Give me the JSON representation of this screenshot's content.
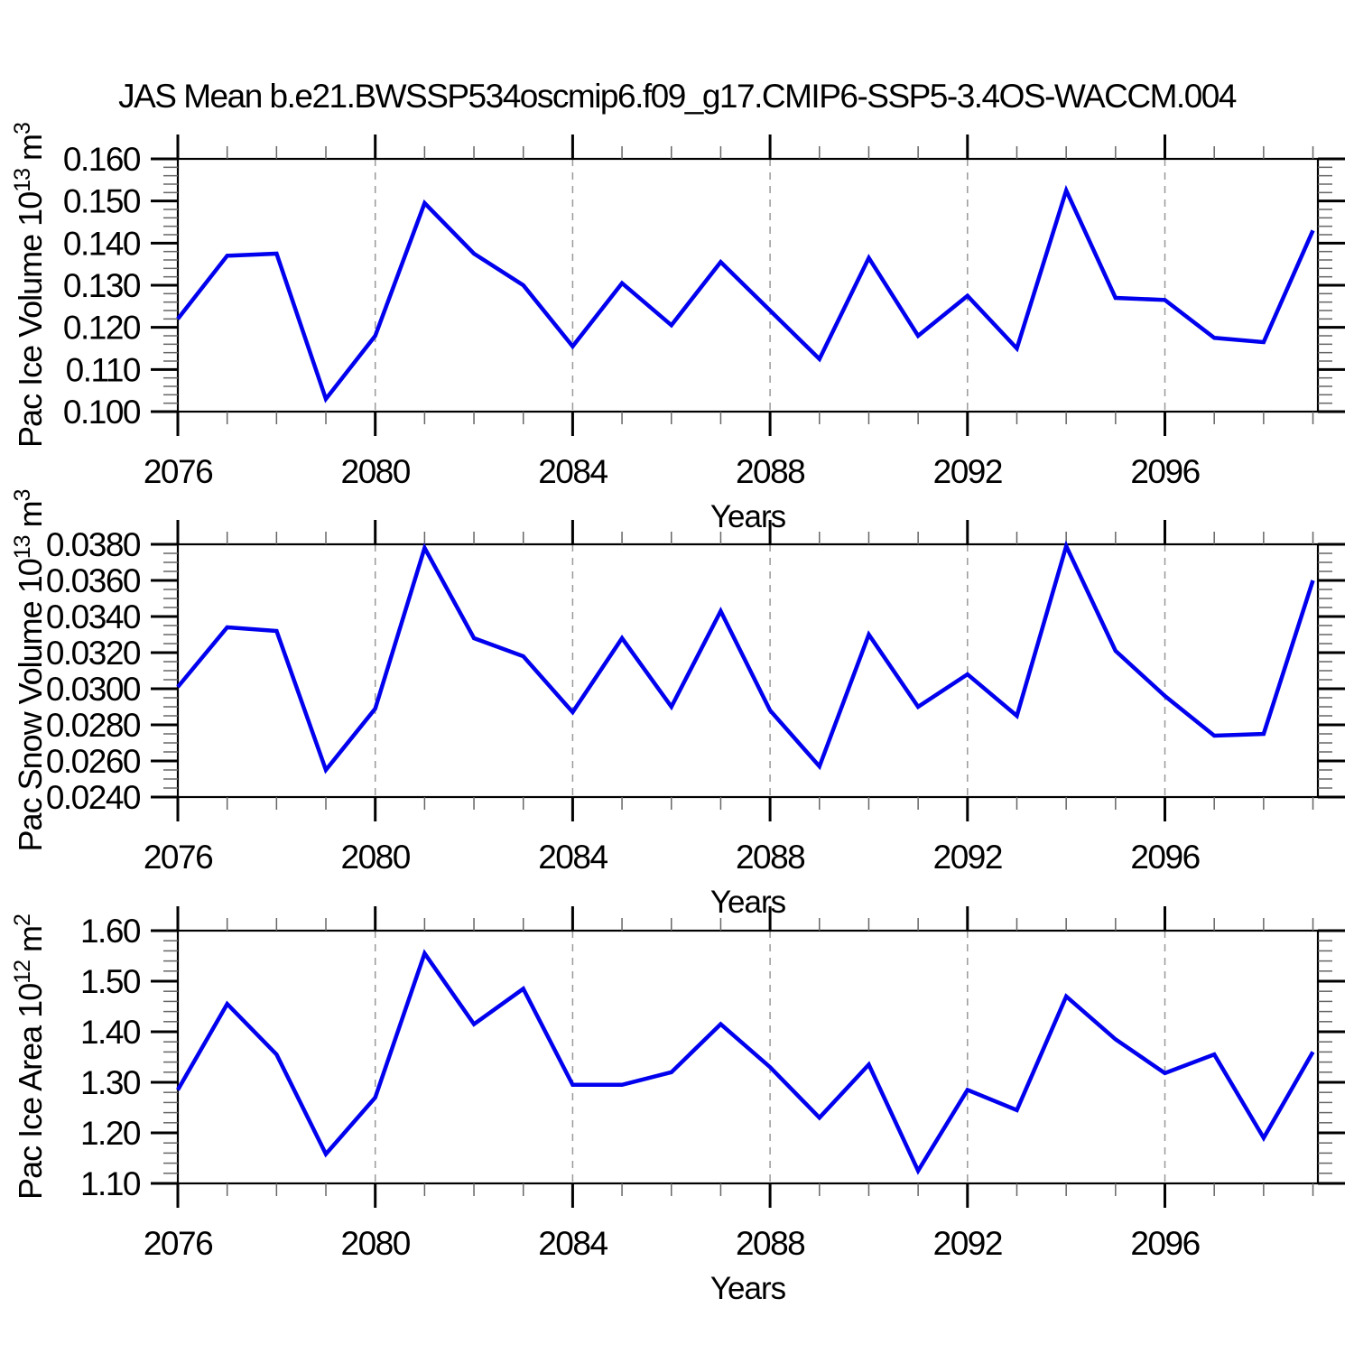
{
  "title": "JAS Mean b.e21.BWSSP534oscmip6.f09_g17.CMIP6-SSP5-3.4OS-WACCM.004",
  "style": {
    "line_color": "#0000ee",
    "grid_color": "#999999",
    "axis_color": "#000000",
    "minor_tick_color": "#666666"
  },
  "chart_data": [
    {
      "type": "line",
      "title": "",
      "xlabel": "Years",
      "ylabel": {
        "base": "Pac Ice Volume 10",
        "exp": "13",
        "unit": "m",
        "unit_exp": "3"
      },
      "x": [
        2076,
        2077,
        2078,
        2079,
        2080,
        2081,
        2082,
        2083,
        2084,
        2085,
        2086,
        2087,
        2088,
        2089,
        2090,
        2091,
        2092,
        2093,
        2094,
        2095,
        2096,
        2097,
        2098,
        2099
      ],
      "values": [
        0.122,
        0.137,
        0.1375,
        0.103,
        0.118,
        0.1495,
        0.1375,
        0.13,
        0.1155,
        0.1305,
        0.1205,
        0.1355,
        0.124,
        0.1125,
        0.1365,
        0.118,
        0.1275,
        0.115,
        0.1525,
        0.127,
        0.1265,
        0.1175,
        0.1165,
        0.143
      ],
      "ylim": [
        0.1,
        0.16
      ],
      "ytick_step": 0.01,
      "ytick_minor_step": 0.002,
      "ytick_decimals": 3,
      "xlim": [
        2076,
        2099.1
      ],
      "xticks_major": [
        2076,
        2080,
        2084,
        2088,
        2092,
        2096
      ],
      "grid_x": [
        2080,
        2084,
        2088,
        2092,
        2096
      ],
      "grid": "vertical-dashed",
      "legend": null
    },
    {
      "type": "line",
      "title": "",
      "xlabel": "Years",
      "ylabel": {
        "base": "Pac Snow Volume 10",
        "exp": "13",
        "unit": "m",
        "unit_exp": "3"
      },
      "x": [
        2076,
        2077,
        2078,
        2079,
        2080,
        2081,
        2082,
        2083,
        2084,
        2085,
        2086,
        2087,
        2088,
        2089,
        2090,
        2091,
        2092,
        2093,
        2094,
        2095,
        2096,
        2097,
        2098,
        2099
      ],
      "values": [
        0.0301,
        0.0334,
        0.0332,
        0.0255,
        0.0289,
        0.0378,
        0.0328,
        0.0318,
        0.0287,
        0.0328,
        0.029,
        0.0343,
        0.0288,
        0.0257,
        0.033,
        0.029,
        0.0308,
        0.0285,
        0.0379,
        0.0321,
        0.0296,
        0.0274,
        0.0275,
        0.036
      ],
      "ylim": [
        0.024,
        0.038
      ],
      "ytick_step": 0.002,
      "ytick_minor_step": 0.0005,
      "ytick_decimals": 4,
      "xlim": [
        2076,
        2099.1
      ],
      "xticks_major": [
        2076,
        2080,
        2084,
        2088,
        2092,
        2096
      ],
      "grid_x": [
        2080,
        2084,
        2088,
        2092,
        2096
      ],
      "grid": "vertical-dashed",
      "legend": null
    },
    {
      "type": "line",
      "title": "",
      "xlabel": "Years",
      "ylabel": {
        "base": "Pac Ice Area 10",
        "exp": "12",
        "unit": "m",
        "unit_exp": "2"
      },
      "x": [
        2076,
        2077,
        2078,
        2079,
        2080,
        2081,
        2082,
        2083,
        2084,
        2085,
        2086,
        2087,
        2088,
        2089,
        2090,
        2091,
        2092,
        2093,
        2094,
        2095,
        2096,
        2097,
        2098,
        2099
      ],
      "values": [
        1.285,
        1.455,
        1.355,
        1.158,
        1.27,
        1.555,
        1.415,
        1.485,
        1.295,
        1.295,
        1.32,
        1.415,
        1.33,
        1.23,
        1.335,
        1.125,
        1.285,
        1.245,
        1.47,
        1.385,
        1.318,
        1.355,
        1.19,
        1.36
      ],
      "ylim": [
        1.1,
        1.6
      ],
      "ytick_step": 0.1,
      "ytick_minor_step": 0.02,
      "ytick_decimals": 2,
      "xlim": [
        2076,
        2099.1
      ],
      "xticks_major": [
        2076,
        2080,
        2084,
        2088,
        2092,
        2096
      ],
      "grid_x": [
        2080,
        2084,
        2088,
        2092,
        2096
      ],
      "grid": "vertical-dashed",
      "legend": null
    }
  ]
}
